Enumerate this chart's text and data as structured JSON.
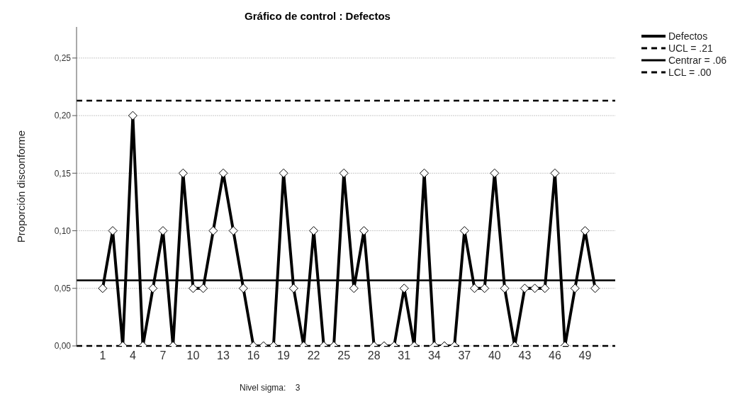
{
  "chart_data": {
    "type": "line",
    "title": "Gráfico de control : Defectos",
    "ylabel": "Proporción disconforme",
    "x": [
      1,
      2,
      3,
      4,
      5,
      6,
      7,
      8,
      9,
      10,
      11,
      12,
      13,
      14,
      15,
      16,
      17,
      18,
      19,
      20,
      21,
      22,
      23,
      24,
      25,
      26,
      27,
      28,
      29,
      30,
      31,
      32,
      33,
      34,
      35,
      36,
      37,
      38,
      39,
      40,
      41,
      42,
      43,
      44,
      45,
      46,
      47,
      48,
      49,
      50
    ],
    "series": [
      {
        "name": "Defectos",
        "color": "#000000",
        "values": [
          0.05,
          0.1,
          0,
          0.2,
          0,
          0.05,
          0.1,
          0,
          0.15,
          0.05,
          0.05,
          0.1,
          0.15,
          0.1,
          0.05,
          0,
          0,
          0,
          0.15,
          0.05,
          0,
          0.1,
          0,
          0,
          0.15,
          0.05,
          0.1,
          0,
          0,
          0,
          0.05,
          0,
          0.15,
          0,
          0,
          0,
          0.1,
          0.05,
          0.05,
          0.15,
          0.05,
          0,
          0.05,
          0.05,
          0.05,
          0.15,
          0,
          0.05,
          0.1,
          0.05
        ]
      }
    ],
    "xlim": [
      -1.6,
      52
    ],
    "xticks": [
      1,
      4,
      7,
      10,
      13,
      16,
      19,
      22,
      25,
      28,
      31,
      34,
      37,
      40,
      43,
      46,
      49
    ],
    "ylim": [
      0,
      0.277
    ],
    "yticks": [
      {
        "value": 0,
        "label": "0,00"
      },
      {
        "value": 0.05,
        "label": "0,05"
      },
      {
        "value": 0.1,
        "label": "0,10"
      },
      {
        "value": 0.15,
        "label": "0,15"
      },
      {
        "value": 0.2,
        "label": "0,20"
      },
      {
        "value": 0.25,
        "label": "0,25"
      }
    ],
    "ref_lines": [
      {
        "axis": "y",
        "value": 0.213,
        "label": "UCL = .21",
        "color": "#000000",
        "line_style": "dashed"
      },
      {
        "axis": "y",
        "value": 0.057,
        "label": "Centrar = .06",
        "color": "#000000",
        "line_style": "solid"
      },
      {
        "axis": "y",
        "value": 0,
        "label": "LCL = .00",
        "color": "#000000",
        "line_style": "dashed"
      }
    ],
    "annotations": [
      "Nivel sigma:    3"
    ],
    "grid": "y",
    "legend": "top right",
    "marker": "diamond",
    "line_style": "solid"
  }
}
